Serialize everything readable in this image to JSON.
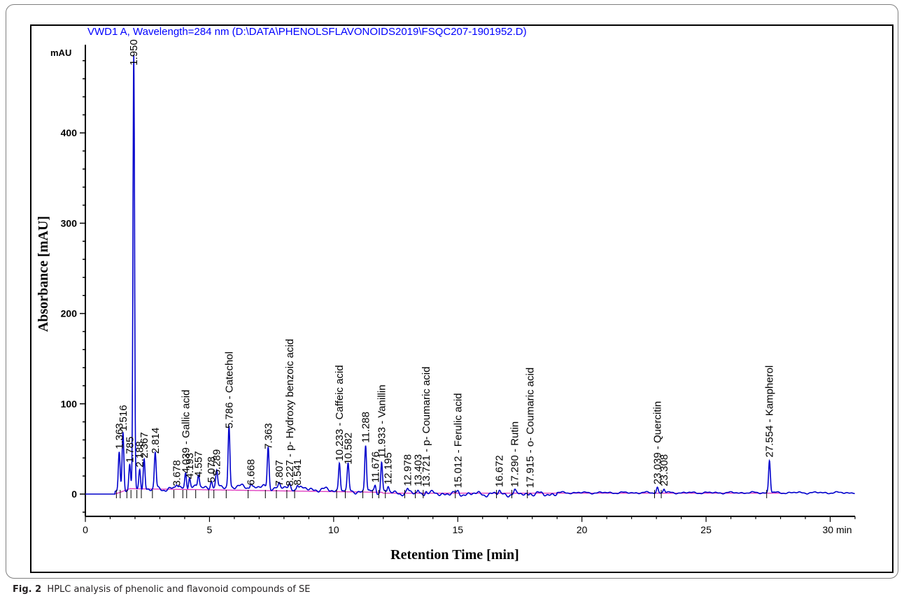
{
  "caption": {
    "label": "Fig. 2",
    "text": "HPLC analysis of phenolic and flavonoid compounds of SE"
  },
  "colors": {
    "trace": "#0000cc",
    "baseline": "#e040c0",
    "header_text": "#0000ff",
    "axis": "#000000"
  },
  "chart_data": {
    "type": "line",
    "header": "VWD1 A, Wavelength=284 nm (D:\\DATA\\PHENOLSFLAVONOIDS2019\\FSQC207-1901952.D)",
    "xlabel": "Retention Time [min]",
    "ylabel": "Absorbance [mAU]",
    "y_unit": "mAU",
    "x_unit": "min",
    "xlim": [
      0,
      31
    ],
    "ylim": [
      -20,
      500
    ],
    "x_ticks": [
      0,
      5,
      10,
      15,
      20,
      25,
      30
    ],
    "y_ticks": [
      0,
      100,
      200,
      300,
      400
    ],
    "grid": false,
    "peaks": [
      {
        "rt": 1.363,
        "height": 45,
        "label": "1.363"
      },
      {
        "rt": 1.516,
        "height": 65,
        "label": "1.516"
      },
      {
        "rt": 1.785,
        "height": 30,
        "label": "1.785"
      },
      {
        "rt": 1.95,
        "height": 480,
        "label": "1.950"
      },
      {
        "rt": 2.188,
        "height": 25,
        "label": "2.188"
      },
      {
        "rt": 2.367,
        "height": 35,
        "label": "2.367"
      },
      {
        "rt": 2.814,
        "height": 40,
        "label": "2.814"
      },
      {
        "rt": 3.678,
        "height": 4,
        "label": "3.678"
      },
      {
        "rt": 4.039,
        "height": 18,
        "label": "4.039",
        "compound": "Gallic acid"
      },
      {
        "rt": 4.193,
        "height": 12,
        "label": "4.193"
      },
      {
        "rt": 4.557,
        "height": 14,
        "label": "4.557"
      },
      {
        "rt": 5.078,
        "height": 8,
        "label": "5.078"
      },
      {
        "rt": 5.289,
        "height": 16,
        "label": "5.289"
      },
      {
        "rt": 5.786,
        "height": 68,
        "label": "5.786",
        "compound": "Catechol"
      },
      {
        "rt": 6.668,
        "height": 5,
        "label": "6.668"
      },
      {
        "rt": 7.363,
        "height": 45,
        "label": "7.363"
      },
      {
        "rt": 7.807,
        "height": 4,
        "label": "7.807"
      },
      {
        "rt": 8.227,
        "height": 4,
        "label": "8.227",
        "compound": "p- Hydroxy benzoic acid"
      },
      {
        "rt": 8.541,
        "height": 5,
        "label": "8.541"
      },
      {
        "rt": 10.233,
        "height": 32,
        "label": "10.233",
        "compound": "Caffeic acid"
      },
      {
        "rt": 10.582,
        "height": 28,
        "label": "10.582"
      },
      {
        "rt": 11.288,
        "height": 52,
        "label": "11.288"
      },
      {
        "rt": 11.676,
        "height": 8,
        "label": "11.676"
      },
      {
        "rt": 11.933,
        "height": 35,
        "label": "11.933",
        "compound": "Vanillin"
      },
      {
        "rt": 12.195,
        "height": 6,
        "label": "12.195"
      },
      {
        "rt": 12.978,
        "height": 4,
        "label": "12.978"
      },
      {
        "rt": 13.403,
        "height": 4,
        "label": "13.403"
      },
      {
        "rt": 13.721,
        "height": 3,
        "label": "13.721",
        "compound": "p- Coumaric acid"
      },
      {
        "rt": 15.012,
        "height": 2,
        "label": "15.012",
        "compound": "Ferulic acid"
      },
      {
        "rt": 16.672,
        "height": 3,
        "label": "16.672"
      },
      {
        "rt": 17.29,
        "height": 3,
        "label": "17.290",
        "compound": "Rutin"
      },
      {
        "rt": 17.915,
        "height": 2,
        "label": "17.915",
        "compound": "o- Coumaric acid"
      },
      {
        "rt": 23.039,
        "height": 6,
        "label": "23.039",
        "compound": "Quercitin"
      },
      {
        "rt": 23.308,
        "height": 4,
        "label": "23.308"
      },
      {
        "rt": 27.554,
        "height": 36,
        "label": "27.554",
        "compound": "Kampherol"
      }
    ]
  }
}
